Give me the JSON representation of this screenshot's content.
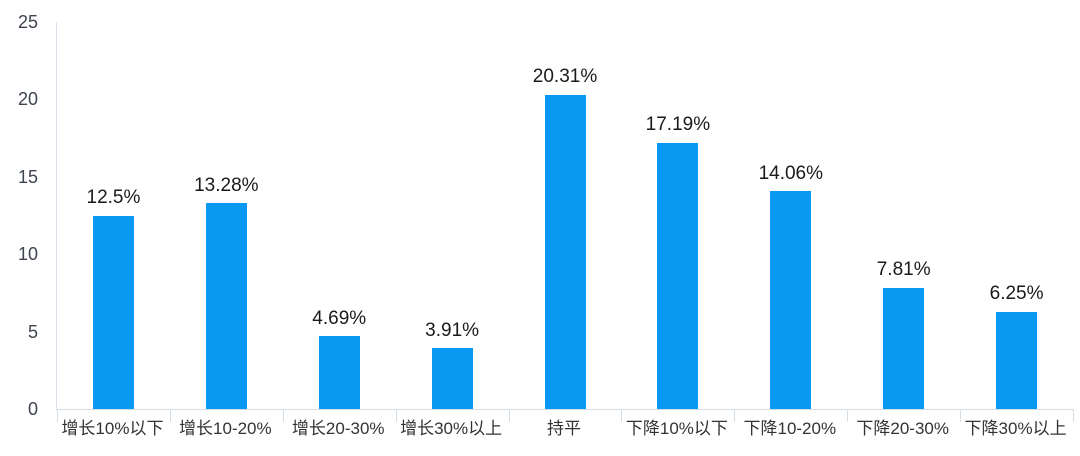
{
  "chart_data": {
    "type": "bar",
    "title": "",
    "xlabel": "",
    "ylabel": "",
    "categories": [
      "增长10%以下",
      "增长10-20%",
      "增长20-30%",
      "增长30%以上",
      "持平",
      "下降10%以下",
      "下降10-20%",
      "下降20-30%",
      "下降30%以上"
    ],
    "values": [
      12.5,
      13.28,
      4.69,
      3.91,
      20.31,
      17.19,
      14.06,
      7.81,
      6.25
    ],
    "value_labels": [
      "12.5%",
      "13.28%",
      "4.69%",
      "3.91%",
      "20.31%",
      "17.19%",
      "14.06%",
      "7.81%",
      "6.25%"
    ],
    "ylim": [
      0,
      25
    ],
    "yticks": [
      0,
      5,
      10,
      15,
      20,
      25
    ],
    "grid": false,
    "legend": false,
    "colors": {
      "bar": "#0a99f2",
      "axis_line": "#d6dce4",
      "value_label": "#1a1a1a",
      "tick_label": "#3d4450",
      "category_label": "#333333",
      "background": "#ffffff"
    }
  }
}
